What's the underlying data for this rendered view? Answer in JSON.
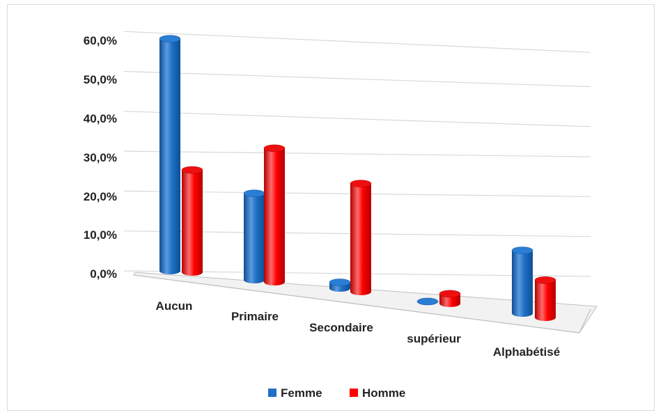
{
  "chart_data": {
    "type": "bar",
    "title": "",
    "xlabel": "",
    "ylabel": "",
    "categories": [
      "Aucun",
      "Primaire",
      "Secondaire",
      "supérieur",
      "Alphabétisé"
    ],
    "series": [
      {
        "name": "Femme",
        "color": "#1f6fc5",
        "values": [
          59.0,
          22.0,
          1.5,
          0.0,
          16.0
        ]
      },
      {
        "name": "Homme",
        "color": "#ff0000",
        "values": [
          26.0,
          34.0,
          27.5,
          2.5,
          9.5
        ]
      }
    ],
    "ylim": [
      0,
      60
    ],
    "yticks": [
      "0,0%",
      "10,0%",
      "20,0%",
      "30,0%",
      "40,0%",
      "50,0%",
      "60,0%"
    ],
    "grid": true,
    "legend": "bottom",
    "style": "3d-cylinder"
  }
}
